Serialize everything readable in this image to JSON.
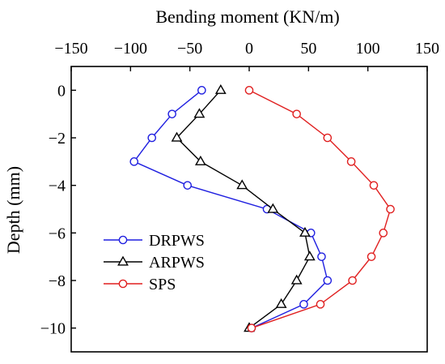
{
  "chart_data": {
    "type": "line",
    "title": "",
    "xlabel": "Bending moment (KN/m)",
    "ylabel": "Depth (mm)",
    "x_axis_position": "top",
    "xlim": [
      -150,
      150
    ],
    "ylim": [
      -11,
      1
    ],
    "x_ticks": [
      -150,
      -100,
      -50,
      0,
      50,
      100,
      150
    ],
    "x_tick_labels": [
      "−150",
      "−100",
      "−50",
      "0",
      "50",
      "100",
      "150"
    ],
    "y_ticks": [
      0,
      -2,
      -4,
      -6,
      -8,
      -10
    ],
    "y_tick_labels": [
      "0",
      "−2",
      "−4",
      "−6",
      "−8",
      "−10"
    ],
    "grid": false,
    "legend_position": "left-bottom",
    "series": [
      {
        "name": "DRPWS",
        "color": "#1f1fe0",
        "marker": "circle",
        "x": [
          -40,
          -65,
          -82,
          -97,
          -52,
          15,
          52,
          61,
          66,
          46,
          2
        ],
        "y": [
          0,
          -1,
          -2,
          -3,
          -4,
          -5,
          -6,
          -7,
          -8,
          -9,
          -10
        ]
      },
      {
        "name": "ARPWS",
        "color": "#000000",
        "marker": "triangle",
        "x": [
          -24,
          -42,
          -61,
          -41,
          -6,
          20,
          47,
          51,
          40,
          27,
          0
        ],
        "y": [
          0,
          -1,
          -2,
          -3,
          -4,
          -5,
          -6,
          -7,
          -8,
          -9,
          -10
        ]
      },
      {
        "name": "SPS",
        "color": "#e01f1f",
        "marker": "circle",
        "x": [
          0,
          40,
          66,
          86,
          105,
          119,
          113,
          103,
          87,
          60,
          2
        ],
        "y": [
          0,
          -1,
          -2,
          -3,
          -4,
          -5,
          -6,
          -7,
          -8,
          -9,
          -10
        ]
      }
    ]
  }
}
